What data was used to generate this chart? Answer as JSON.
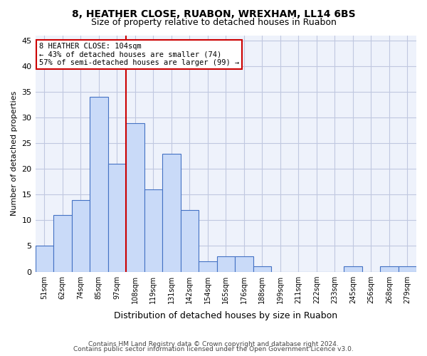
{
  "title": "8, HEATHER CLOSE, RUABON, WREXHAM, LL14 6BS",
  "subtitle": "Size of property relative to detached houses in Ruabon",
  "xlabel": "Distribution of detached houses by size in Ruabon",
  "ylabel": "Number of detached properties",
  "categories": [
    "51sqm",
    "62sqm",
    "74sqm",
    "85sqm",
    "97sqm",
    "108sqm",
    "119sqm",
    "131sqm",
    "142sqm",
    "154sqm",
    "165sqm",
    "176sqm",
    "188sqm",
    "199sqm",
    "211sqm",
    "222sqm",
    "233sqm",
    "245sqm",
    "256sqm",
    "268sqm",
    "279sqm"
  ],
  "values": [
    5,
    11,
    14,
    34,
    21,
    29,
    16,
    23,
    12,
    2,
    3,
    3,
    1,
    0,
    0,
    0,
    0,
    1,
    0,
    1,
    1
  ],
  "bar_color": "#c9daf8",
  "bar_edge_color": "#4472c4",
  "property_line_x": 4.5,
  "property_label": "8 HEATHER CLOSE: 104sqm",
  "annotation_line1": "← 43% of detached houses are smaller (74)",
  "annotation_line2": "57% of semi-detached houses are larger (99) →",
  "annotation_box_color": "#cc0000",
  "vline_color": "#cc0000",
  "ylim": [
    0,
    46
  ],
  "yticks": [
    0,
    5,
    10,
    15,
    20,
    25,
    30,
    35,
    40,
    45
  ],
  "grid_color": "#c0c8e0",
  "bg_color": "#eef2fb",
  "footer1": "Contains HM Land Registry data © Crown copyright and database right 2024.",
  "footer2": "Contains public sector information licensed under the Open Government Licence v3.0."
}
